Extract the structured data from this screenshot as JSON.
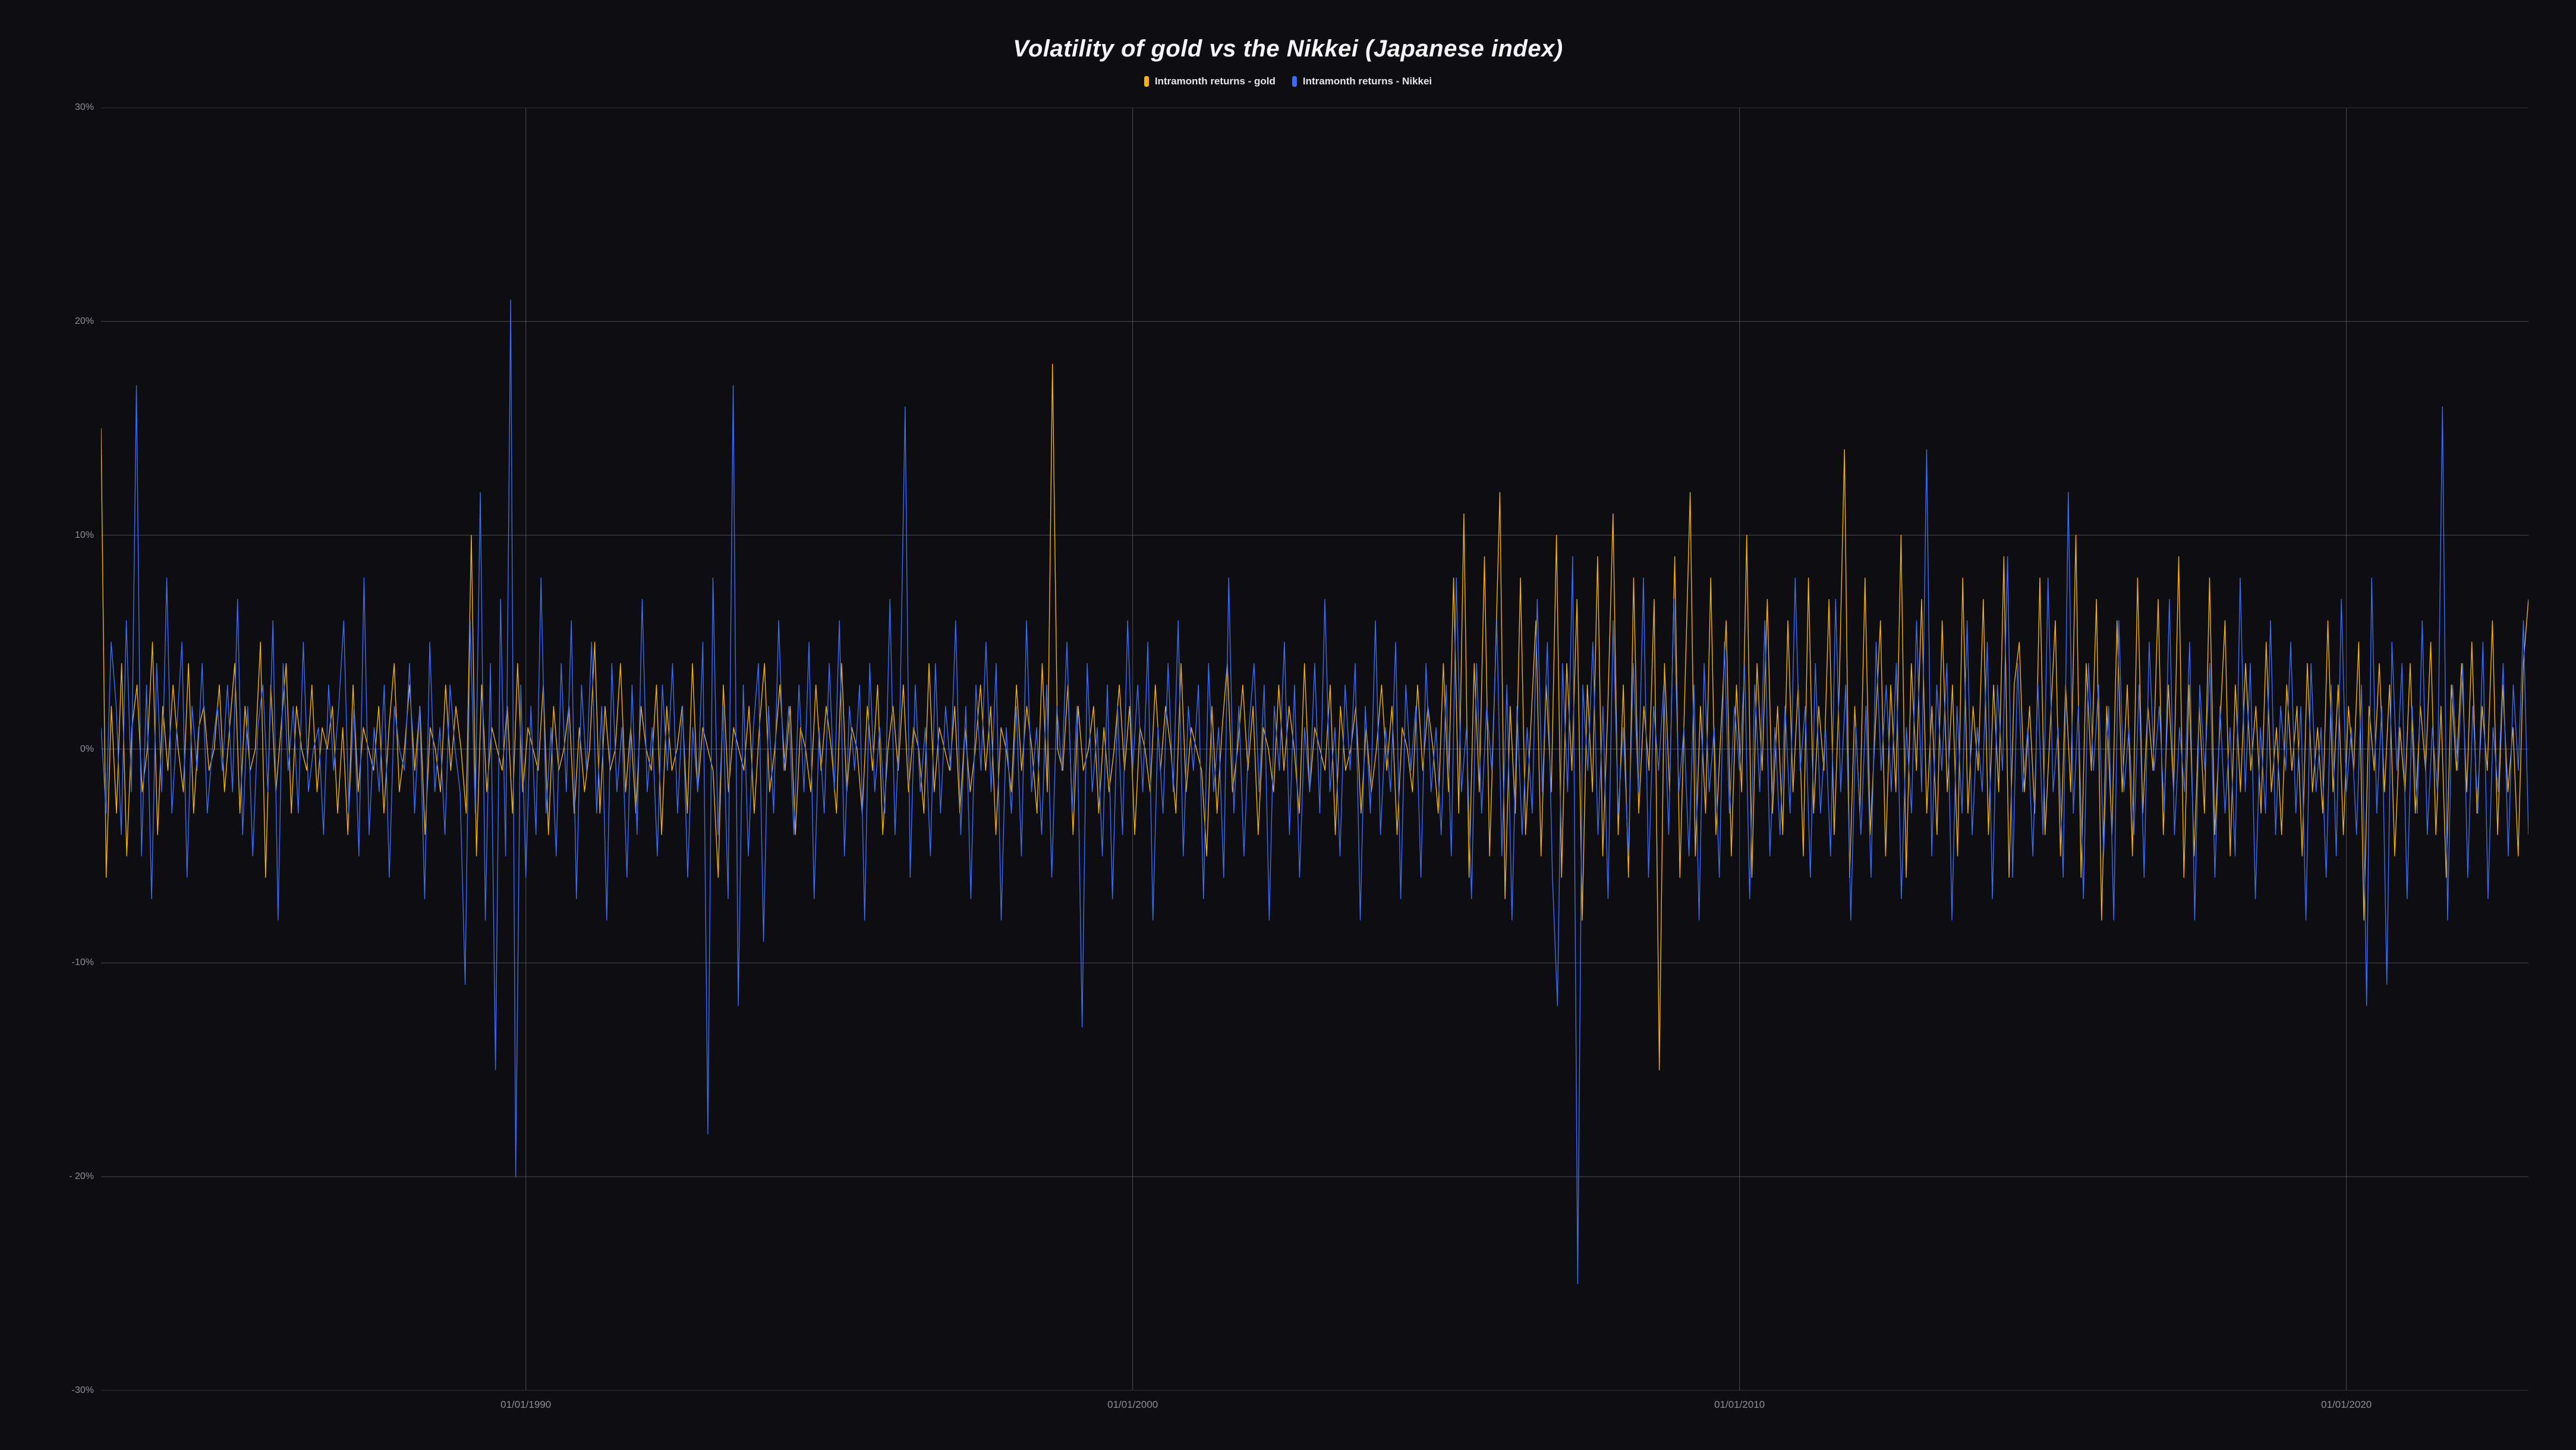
{
  "chart": {
    "type": "line",
    "title": "Volatility of gold vs the Nikkei (Japanese index)",
    "title_fontsize": 40,
    "title_color": "#f5f5f5",
    "background_color": "#0d0d12",
    "grid_color": "#4a4d55",
    "axis_label_color": "#8c8f9a",
    "axis_label_fontsize": 16,
    "legend_fontsize": 17,
    "legend_label_color": "#e6e6e6",
    "ylim": [
      -30,
      30
    ],
    "yticks": [
      {
        "v": 30,
        "label": "30%"
      },
      {
        "v": 20,
        "label": "20%"
      },
      {
        "v": 10,
        "label": "10%"
      },
      {
        "v": 0,
        "label": "0%"
      },
      {
        "v": -10,
        "label": "-10%"
      },
      {
        "v": -20,
        "label": "- 20%"
      },
      {
        "v": -30,
        "label": "-30%"
      }
    ],
    "x_start_year": 1983,
    "x_end_year": 2023,
    "xticks": [
      {
        "year": 1990,
        "label": "01/01/1990"
      },
      {
        "year": 2000,
        "label": "01/01/2000"
      },
      {
        "year": 2010,
        "label": "01/01/2010"
      },
      {
        "year": 2020,
        "label": "01/01/2020"
      }
    ],
    "line_width": 1.4,
    "series": [
      {
        "name": "Intramonth returns - gold",
        "color": "#f5b301",
        "swatch_radius": 3,
        "data": [
          15,
          -6,
          2,
          -3,
          4,
          -5,
          1,
          3,
          -2,
          0,
          5,
          -4,
          2,
          -1,
          3,
          0,
          -2,
          4,
          -3,
          1,
          2,
          -1,
          0,
          3,
          -2,
          1,
          4,
          -3,
          2,
          -1,
          0,
          5,
          -6,
          3,
          -2,
          1,
          4,
          -3,
          2,
          0,
          -1,
          3,
          -2,
          1,
          0,
          2,
          -3,
          1,
          -4,
          3,
          -2,
          1,
          0,
          -1,
          2,
          -3,
          1,
          4,
          -2,
          0,
          3,
          -1,
          2,
          -4,
          1,
          0,
          -2,
          3,
          -1,
          2,
          0,
          -3,
          10,
          -5,
          3,
          -2,
          1,
          0,
          -1,
          2,
          -3,
          4,
          -2,
          1,
          0,
          -1,
          3,
          -4,
          2,
          -1,
          0,
          2,
          -3,
          1,
          -2,
          0,
          5,
          -3,
          2,
          -1,
          0,
          4,
          -2,
          1,
          -3,
          2,
          0,
          -1,
          3,
          -4,
          2,
          -1,
          0,
          2,
          -3,
          4,
          -2,
          1,
          0,
          -1,
          -6,
          3,
          -2,
          1,
          0,
          -1,
          2,
          -3,
          1,
          4,
          -2,
          0,
          3,
          -1,
          2,
          -4,
          1,
          0,
          -2,
          3,
          -1,
          2,
          0,
          -3,
          4,
          -2,
          1,
          0,
          -3,
          2,
          -1,
          3,
          -4,
          0,
          2,
          -1,
          3,
          -2,
          1,
          0,
          -3,
          4,
          -2,
          1,
          0,
          -1,
          2,
          -3,
          1,
          -2,
          0,
          3,
          -1,
          2,
          -4,
          1,
          0,
          -2,
          3,
          -1,
          2,
          0,
          -3,
          4,
          -2,
          18,
          0,
          -1,
          3,
          -4,
          2,
          -1,
          0,
          2,
          -3,
          1,
          -2,
          0,
          3,
          -1,
          2,
          -4,
          1,
          0,
          -2,
          3,
          -1,
          2,
          0,
          -3,
          4,
          -2,
          1,
          0,
          -1,
          -5,
          2,
          -3,
          1,
          4,
          -2,
          0,
          3,
          -1,
          2,
          -4,
          1,
          0,
          -2,
          3,
          -1,
          2,
          0,
          -3,
          4,
          -2,
          1,
          0,
          -1,
          3,
          -4,
          2,
          -1,
          0,
          2,
          -3,
          1,
          -2,
          0,
          3,
          -1,
          2,
          -4,
          1,
          0,
          -2,
          3,
          -1,
          2,
          0,
          -3,
          4,
          -2,
          8,
          -3,
          11,
          -6,
          4,
          -2,
          9,
          -5,
          3,
          12,
          -7,
          2,
          -3,
          8,
          -4,
          1,
          6,
          -5,
          3,
          -2,
          10,
          -6,
          4,
          -1,
          7,
          -8,
          3,
          -2,
          9,
          -5,
          2,
          11,
          -4,
          3,
          -6,
          8,
          -3,
          2,
          -1,
          7,
          -15,
          4,
          -2,
          9,
          -6,
          3,
          12,
          -5,
          2,
          -3,
          8,
          -4,
          1,
          6,
          -5,
          3,
          -2,
          10,
          -6,
          4,
          -1,
          7,
          -3,
          2,
          -4,
          6,
          -2,
          3,
          -5,
          8,
          -3,
          2,
          -1,
          7,
          -4,
          3,
          14,
          -6,
          2,
          -3,
          8,
          -4,
          1,
          6,
          -5,
          3,
          -2,
          10,
          -6,
          4,
          -1,
          7,
          -3,
          2,
          -4,
          6,
          -2,
          3,
          -5,
          8,
          -3,
          2,
          -1,
          7,
          -4,
          3,
          -2,
          9,
          -6,
          3,
          5,
          -2,
          2,
          -3,
          8,
          -4,
          1,
          6,
          -5,
          3,
          -2,
          10,
          -6,
          4,
          -1,
          7,
          -8,
          2,
          -4,
          6,
          -2,
          3,
          -5,
          8,
          -3,
          2,
          -1,
          7,
          -4,
          3,
          -2,
          9,
          -6,
          3,
          -5,
          2,
          -3,
          8,
          -4,
          1,
          6,
          -5,
          3,
          -2,
          4,
          -1,
          2,
          -3,
          5,
          -2,
          1,
          -4,
          3,
          -1,
          2,
          -5,
          4,
          -2,
          1,
          -3,
          6,
          -2,
          3,
          -4,
          2,
          -1,
          5,
          -8,
          2,
          -1,
          4,
          -2,
          3,
          -5,
          1,
          -2,
          4,
          -3,
          2,
          -1,
          5,
          -4,
          2,
          -6,
          3,
          -1,
          4,
          -2,
          5,
          -3,
          2,
          -1,
          6,
          -4,
          3,
          -2,
          1,
          -5,
          4,
          7
        ]
      },
      {
        "name": "Intramonth returns - Nikkei",
        "color": "#3c6cf5",
        "swatch_radius": 3,
        "data": [
          1,
          -3,
          5,
          2,
          -4,
          6,
          -2,
          17,
          -5,
          3,
          -7,
          4,
          -2,
          8,
          -3,
          1,
          5,
          -6,
          2,
          -1,
          4,
          -3,
          0,
          2,
          -1,
          3,
          -2,
          7,
          -4,
          2,
          -5,
          1,
          3,
          -2,
          6,
          -8,
          4,
          -1,
          2,
          -3,
          5,
          -2,
          0,
          1,
          -4,
          3,
          -1,
          2,
          6,
          -3,
          2,
          -5,
          8,
          -4,
          1,
          -2,
          3,
          -6,
          2,
          0,
          -1,
          4,
          -3,
          2,
          -7,
          5,
          -2,
          1,
          -4,
          3,
          0,
          -2,
          -11,
          6,
          -3,
          12,
          -8,
          4,
          -15,
          7,
          -5,
          21,
          -20,
          3,
          -6,
          2,
          -4,
          8,
          -3,
          1,
          -5,
          4,
          -2,
          6,
          -7,
          3,
          -1,
          5,
          -3,
          2,
          -8,
          4,
          -2,
          1,
          -6,
          3,
          -4,
          7,
          -2,
          1,
          -5,
          3,
          -1,
          4,
          -3,
          2,
          -6,
          1,
          -2,
          5,
          -18,
          8,
          -4,
          2,
          -7,
          17,
          -12,
          3,
          -5,
          1,
          4,
          -9,
          2,
          -3,
          6,
          -1,
          2,
          -4,
          3,
          -2,
          5,
          -7,
          1,
          -3,
          4,
          -2,
          6,
          -5,
          2,
          -1,
          3,
          -8,
          4,
          -2,
          1,
          -3,
          7,
          -4,
          2,
          16,
          -6,
          3,
          -2,
          1,
          -5,
          4,
          -3,
          2,
          -1,
          6,
          -4,
          2,
          -7,
          3,
          -1,
          5,
          -2,
          4,
          -8,
          1,
          -3,
          2,
          -5,
          6,
          -2,
          1,
          -4,
          3,
          -6,
          2,
          -1,
          5,
          -3,
          2,
          -13,
          4,
          -2,
          1,
          -5,
          3,
          -7,
          2,
          -4,
          6,
          -1,
          3,
          -2,
          5,
          -8,
          1,
          -3,
          4,
          -2,
          6,
          -5,
          2,
          -1,
          3,
          -7,
          4,
          -2,
          1,
          -6,
          8,
          -3,
          2,
          -5,
          1,
          4,
          -2,
          3,
          -8,
          2,
          -1,
          5,
          -4,
          3,
          -6,
          1,
          -2,
          4,
          -3,
          7,
          -2,
          1,
          -5,
          3,
          -1,
          4,
          -8,
          2,
          -3,
          6,
          -4,
          1,
          -2,
          5,
          -7,
          3,
          -1,
          2,
          -6,
          4,
          -2,
          1,
          -4,
          3,
          -5,
          8,
          -2,
          1,
          -7,
          4,
          -3,
          2,
          -1,
          6,
          -5,
          3,
          -8,
          2,
          -4,
          1,
          -3,
          7,
          -2,
          5,
          -6,
          -12,
          4,
          -2,
          9,
          -25,
          3,
          -1,
          5,
          -4,
          2,
          -7,
          6,
          -3,
          1,
          -5,
          4,
          -2,
          8,
          -6,
          2,
          -1,
          3,
          -4,
          7,
          -2,
          1,
          -5,
          3,
          -8,
          4,
          -2,
          1,
          -6,
          5,
          -3,
          2,
          -1,
          4,
          -7,
          3,
          -2,
          6,
          -5,
          1,
          -4,
          2,
          -3,
          8,
          -1,
          2,
          -6,
          4,
          -3,
          1,
          -5,
          7,
          -2,
          3,
          -8,
          1,
          -4,
          2,
          -6,
          5,
          -1,
          3,
          -2,
          4,
          -7,
          1,
          -3,
          6,
          -2,
          14,
          -5,
          3,
          -1,
          4,
          -8,
          2,
          -3,
          6,
          -4,
          1,
          -2,
          5,
          -7,
          3,
          -1,
          9,
          -6,
          4,
          -2,
          1,
          -5,
          3,
          -4,
          8,
          -2,
          1,
          -6,
          12,
          -3,
          2,
          -7,
          4,
          -1,
          3,
          -5,
          2,
          -8,
          6,
          -2,
          1,
          -4,
          3,
          -6,
          5,
          -1,
          2,
          -3,
          7,
          -4,
          1,
          -2,
          5,
          -8,
          3,
          -1,
          4,
          -6,
          2,
          -3,
          1,
          -5,
          8,
          -2,
          4,
          -7,
          1,
          -3,
          6,
          -4,
          2,
          -1,
          5,
          -3,
          2,
          -8,
          4,
          -2,
          1,
          -6,
          3,
          -5,
          7,
          -2,
          1,
          -4,
          3,
          -12,
          8,
          -3,
          2,
          -11,
          5,
          -1,
          4,
          -7,
          2,
          -3,
          6,
          -4,
          1,
          -2,
          16,
          -8,
          3,
          -1,
          4,
          -6,
          2,
          -3,
          5,
          -7,
          1,
          -2,
          4,
          -5,
          3,
          -1,
          6,
          -4
        ]
      }
    ]
  }
}
